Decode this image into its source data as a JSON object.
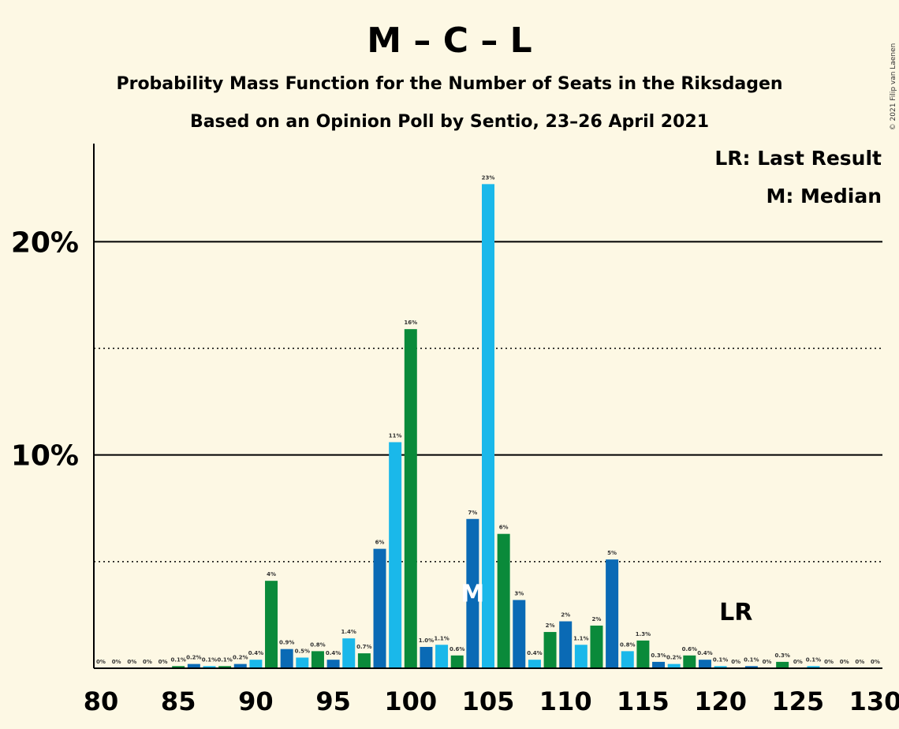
{
  "title": "M – C – L",
  "subtitle1": "Probability Mass Function for the Number of Seats in the Riksdagen",
  "subtitle2": "Based on an Opinion Poll by Sentio, 23–26 April 2021",
  "credit": "© 2021 Filip van Laenen",
  "legend": {
    "lr": "LR: Last Result",
    "m": "M: Median"
  },
  "markers": {
    "median_label": "M",
    "median_seat": 104,
    "last_result_label": "LR",
    "last_result_seat": 121
  },
  "colors": {
    "blue_dark": "#0a6ab5",
    "blue_light": "#1ab8ea",
    "green": "#0a8a3a",
    "background": "#fdf8e4"
  },
  "chart_data": {
    "type": "bar",
    "x": [
      80,
      81,
      82,
      83,
      84,
      85,
      86,
      87,
      88,
      89,
      90,
      91,
      92,
      93,
      94,
      95,
      96,
      97,
      98,
      99,
      100,
      101,
      102,
      103,
      104,
      105,
      106,
      107,
      108,
      109,
      110,
      111,
      112,
      113,
      114,
      115,
      116,
      117,
      118,
      119,
      120,
      121,
      122,
      123,
      124,
      125,
      126,
      127,
      128,
      129,
      130
    ],
    "values": [
      0,
      0,
      0,
      0,
      0,
      0.1,
      0.2,
      0.1,
      0.1,
      0.2,
      0.4,
      4.1,
      0.9,
      0.5,
      0.8,
      0.4,
      1.4,
      0.7,
      5.6,
      10.6,
      15.9,
      1.0,
      1.1,
      0.6,
      7.0,
      22.7,
      6.3,
      3.2,
      0.4,
      1.7,
      2.2,
      1.1,
      2.0,
      5.1,
      0.8,
      1.3,
      0.3,
      0.2,
      0.6,
      0.4,
      0.1,
      0,
      0.1,
      0,
      0.3,
      0,
      0.1,
      0,
      0,
      0,
      0
    ],
    "labels": [
      "0%",
      "0%",
      "0%",
      "0%",
      "0%",
      "0.1%",
      "0.2%",
      "0.1%",
      "0.1%",
      "0.2%",
      "0.4%",
      "4%",
      "0.9%",
      "0.5%",
      "0.8%",
      "0.4%",
      "1.4%",
      "0.7%",
      "6%",
      "11%",
      "16%",
      "1.0%",
      "1.1%",
      "0.6%",
      "7%",
      "23%",
      "6%",
      "3%",
      "0.4%",
      "2%",
      "2%",
      "1.1%",
      "2%",
      "5%",
      "0.8%",
      "1.3%",
      "0.3%",
      "0.2%",
      "0.6%",
      "0.4%",
      "0.1%",
      "0%",
      "0.1%",
      "0%",
      "0.3%",
      "0%",
      "0.1%",
      "0%",
      "0%",
      "0%",
      "0%"
    ],
    "xticks": [
      80,
      85,
      90,
      95,
      100,
      105,
      110,
      115,
      120,
      125,
      130
    ],
    "yticks": [
      {
        "value": 10,
        "label": "10%"
      },
      {
        "value": 20,
        "label": "20%"
      }
    ],
    "ygrid_dotted": [
      5,
      15
    ],
    "xlim": [
      80,
      130
    ],
    "ylim": [
      0,
      24.6
    ],
    "color_cycle": [
      "blue_dark",
      "blue_light",
      "green"
    ]
  }
}
